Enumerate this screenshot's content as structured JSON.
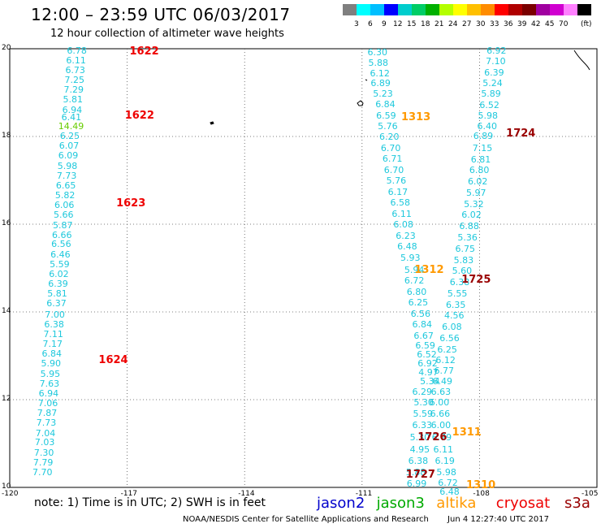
{
  "header": {
    "title": "12:00 – 23:59 UTC 06/03/2017",
    "subtitle": "12 hour collection of altimeter wave heights"
  },
  "colorbar": {
    "unit": "(ft)",
    "colors": [
      "#7f7f7f",
      "#00ffff",
      "#00bfff",
      "#0000ff",
      "#00cdcd",
      "#00cd66",
      "#00b000",
      "#b4ff00",
      "#ffff00",
      "#ffc000",
      "#ff8c00",
      "#ff0000",
      "#b00000",
      "#7a0000",
      "#a000a0",
      "#d000d0",
      "#ff80ff",
      "#000000"
    ],
    "labels": [
      "3",
      "6",
      "9",
      "12",
      "15",
      "18",
      "21",
      "24",
      "27",
      "30",
      "33",
      "36",
      "39",
      "42",
      "45",
      "70"
    ]
  },
  "axes": {
    "x_ticks": [
      "-120",
      "-117",
      "-114",
      "-111",
      "-108",
      "-105"
    ],
    "y_ticks": [
      "20",
      "18",
      "16",
      "14",
      "12",
      "10"
    ]
  },
  "tracks": {
    "colors": {
      "cyan": "#1ec8dc",
      "green": "#66cc00",
      "red": "#ee0000",
      "orange": "#ff9900",
      "maroon": "#990000"
    },
    "wave_labels": [
      {
        "t": "6.78",
        "c": "cyan",
        "lon": -118.54,
        "lat": 19.95
      },
      {
        "t": "6.11",
        "c": "cyan",
        "lon": -118.56,
        "lat": 19.72
      },
      {
        "t": "6.73",
        "c": "cyan",
        "lon": -118.58,
        "lat": 19.5
      },
      {
        "t": "7.25",
        "c": "cyan",
        "lon": -118.6,
        "lat": 19.27
      },
      {
        "t": "7.29",
        "c": "cyan",
        "lon": -118.62,
        "lat": 19.05
      },
      {
        "t": "5.81",
        "c": "cyan",
        "lon": -118.64,
        "lat": 18.83
      },
      {
        "t": "6.94",
        "c": "cyan",
        "lon": -118.66,
        "lat": 18.6
      },
      {
        "t": "6.41",
        "c": "cyan",
        "lon": -118.68,
        "lat": 18.43
      },
      {
        "t": "14.49",
        "c": "green",
        "lon": -118.76,
        "lat": 18.22
      },
      {
        "t": "6.25",
        "c": "cyan",
        "lon": -118.72,
        "lat": 18.0
      },
      {
        "t": "6.07",
        "c": "cyan",
        "lon": -118.74,
        "lat": 17.77
      },
      {
        "t": "6.09",
        "c": "cyan",
        "lon": -118.76,
        "lat": 17.55
      },
      {
        "t": "5.98",
        "c": "cyan",
        "lon": -118.78,
        "lat": 17.32
      },
      {
        "t": "7.73",
        "c": "cyan",
        "lon": -118.8,
        "lat": 17.1
      },
      {
        "t": "6.65",
        "c": "cyan",
        "lon": -118.82,
        "lat": 16.87
      },
      {
        "t": "5.82",
        "c": "cyan",
        "lon": -118.84,
        "lat": 16.65
      },
      {
        "t": "6.06",
        "c": "cyan",
        "lon": -118.86,
        "lat": 16.42
      },
      {
        "t": "5.66",
        "c": "cyan",
        "lon": -118.88,
        "lat": 16.2
      },
      {
        "t": "5.87",
        "c": "cyan",
        "lon": -118.9,
        "lat": 15.97
      },
      {
        "t": "6.66",
        "c": "cyan",
        "lon": -118.92,
        "lat": 15.75
      },
      {
        "t": "6.56",
        "c": "cyan",
        "lon": -118.94,
        "lat": 15.53
      },
      {
        "t": "6.46",
        "c": "cyan",
        "lon": -118.96,
        "lat": 15.3
      },
      {
        "t": "5.59",
        "c": "cyan",
        "lon": -118.98,
        "lat": 15.08
      },
      {
        "t": "6.02",
        "c": "cyan",
        "lon": -119.0,
        "lat": 14.85
      },
      {
        "t": "6.39",
        "c": "cyan",
        "lon": -119.02,
        "lat": 14.63
      },
      {
        "t": "5.81",
        "c": "cyan",
        "lon": -119.04,
        "lat": 14.4
      },
      {
        "t": "6.37",
        "c": "cyan",
        "lon": -119.06,
        "lat": 14.18
      },
      {
        "t": "7.00",
        "c": "cyan",
        "lon": -119.1,
        "lat": 13.93
      },
      {
        "t": "6.38",
        "c": "cyan",
        "lon": -119.12,
        "lat": 13.71
      },
      {
        "t": "7.11",
        "c": "cyan",
        "lon": -119.14,
        "lat": 13.48
      },
      {
        "t": "7.17",
        "c": "cyan",
        "lon": -119.16,
        "lat": 13.26
      },
      {
        "t": "6.84",
        "c": "cyan",
        "lon": -119.18,
        "lat": 13.03
      },
      {
        "t": "5.90",
        "c": "cyan",
        "lon": -119.2,
        "lat": 12.81
      },
      {
        "t": "5.95",
        "c": "cyan",
        "lon": -119.22,
        "lat": 12.58
      },
      {
        "t": "7.63",
        "c": "cyan",
        "lon": -119.24,
        "lat": 12.36
      },
      {
        "t": "6.94",
        "c": "cyan",
        "lon": -119.26,
        "lat": 12.13
      },
      {
        "t": "7.06",
        "c": "cyan",
        "lon": -119.28,
        "lat": 11.91
      },
      {
        "t": "7.87",
        "c": "cyan",
        "lon": -119.3,
        "lat": 11.68
      },
      {
        "t": "7.73",
        "c": "cyan",
        "lon": -119.32,
        "lat": 11.46
      },
      {
        "t": "7.04",
        "c": "cyan",
        "lon": -119.34,
        "lat": 11.23
      },
      {
        "t": "7.03",
        "c": "cyan",
        "lon": -119.36,
        "lat": 11.01
      },
      {
        "t": "7.30",
        "c": "cyan",
        "lon": -119.38,
        "lat": 10.78
      },
      {
        "t": "7.79",
        "c": "cyan",
        "lon": -119.4,
        "lat": 10.56
      },
      {
        "t": "7.70",
        "c": "cyan",
        "lon": -119.42,
        "lat": 10.33
      },
      {
        "t": "6.30",
        "c": "cyan",
        "lon": -110.86,
        "lat": 19.9
      },
      {
        "t": "5.88",
        "c": "cyan",
        "lon": -110.84,
        "lat": 19.67
      },
      {
        "t": "6.12",
        "c": "cyan",
        "lon": -110.8,
        "lat": 19.43
      },
      {
        "t": "6.89",
        "c": "cyan",
        "lon": -110.78,
        "lat": 19.2
      },
      {
        "t": "5.23",
        "c": "cyan",
        "lon": -110.72,
        "lat": 18.96
      },
      {
        "t": "6.84",
        "c": "cyan",
        "lon": -110.66,
        "lat": 18.72
      },
      {
        "t": "6.59",
        "c": "cyan",
        "lon": -110.64,
        "lat": 18.46
      },
      {
        "t": "5.76",
        "c": "cyan",
        "lon": -110.6,
        "lat": 18.22
      },
      {
        "t": "6.20",
        "c": "cyan",
        "lon": -110.56,
        "lat": 17.98
      },
      {
        "t": "6.70",
        "c": "cyan",
        "lon": -110.52,
        "lat": 17.73
      },
      {
        "t": "6.71",
        "c": "cyan",
        "lon": -110.48,
        "lat": 17.48
      },
      {
        "t": "6.70",
        "c": "cyan",
        "lon": -110.44,
        "lat": 17.23
      },
      {
        "t": "5.76",
        "c": "cyan",
        "lon": -110.38,
        "lat": 16.98
      },
      {
        "t": "6.17",
        "c": "cyan",
        "lon": -110.34,
        "lat": 16.73
      },
      {
        "t": "6.58",
        "c": "cyan",
        "lon": -110.28,
        "lat": 16.48
      },
      {
        "t": "6.11",
        "c": "cyan",
        "lon": -110.24,
        "lat": 16.23
      },
      {
        "t": "6.08",
        "c": "cyan",
        "lon": -110.2,
        "lat": 15.98
      },
      {
        "t": "6.23",
        "c": "cyan",
        "lon": -110.14,
        "lat": 15.73
      },
      {
        "t": "6.48",
        "c": "cyan",
        "lon": -110.1,
        "lat": 15.48
      },
      {
        "t": "5.93",
        "c": "cyan",
        "lon": -110.02,
        "lat": 15.23
      },
      {
        "t": "5.94",
        "c": "cyan",
        "lon": -109.92,
        "lat": 14.95
      },
      {
        "t": "6.72",
        "c": "cyan",
        "lon": -109.92,
        "lat": 14.7
      },
      {
        "t": "6.80",
        "c": "cyan",
        "lon": -109.86,
        "lat": 14.45
      },
      {
        "t": "6.25",
        "c": "cyan",
        "lon": -109.82,
        "lat": 14.2
      },
      {
        "t": "6.56",
        "c": "cyan",
        "lon": -109.76,
        "lat": 13.95
      },
      {
        "t": "6.84",
        "c": "cyan",
        "lon": -109.72,
        "lat": 13.7
      },
      {
        "t": "6.67",
        "c": "cyan",
        "lon": -109.68,
        "lat": 13.45
      },
      {
        "t": "6.59",
        "c": "cyan",
        "lon": -109.64,
        "lat": 13.22
      },
      {
        "t": "6.52",
        "c": "cyan",
        "lon": -109.6,
        "lat": 13.02
      },
      {
        "t": "6.92",
        "c": "cyan",
        "lon": -109.58,
        "lat": 12.82
      },
      {
        "t": "4.97",
        "c": "cyan",
        "lon": -109.56,
        "lat": 12.62
      },
      {
        "t": "5.34",
        "c": "cyan",
        "lon": -109.52,
        "lat": 12.4
      },
      {
        "t": "6.29",
        "c": "cyan",
        "lon": -109.72,
        "lat": 12.16
      },
      {
        "t": "5.30",
        "c": "cyan",
        "lon": -109.68,
        "lat": 11.92
      },
      {
        "t": "5.59",
        "c": "cyan",
        "lon": -109.7,
        "lat": 11.66
      },
      {
        "t": "6.33",
        "c": "cyan",
        "lon": -109.72,
        "lat": 11.4
      },
      {
        "t": "5.30",
        "c": "cyan",
        "lon": -109.78,
        "lat": 11.13
      },
      {
        "t": "4.95",
        "c": "cyan",
        "lon": -109.78,
        "lat": 10.86
      },
      {
        "t": "6.38",
        "c": "cyan",
        "lon": -109.82,
        "lat": 10.6
      },
      {
        "t": "5.88",
        "c": "cyan",
        "lon": -109.88,
        "lat": 10.34
      },
      {
        "t": "6.99",
        "c": "cyan",
        "lon": -109.86,
        "lat": 10.08
      },
      {
        "t": "6.92",
        "c": "cyan",
        "lon": -107.82,
        "lat": 19.95
      },
      {
        "t": "7.10",
        "c": "cyan",
        "lon": -107.84,
        "lat": 19.7
      },
      {
        "t": "6.39",
        "c": "cyan",
        "lon": -107.88,
        "lat": 19.45
      },
      {
        "t": "5.24",
        "c": "cyan",
        "lon": -107.92,
        "lat": 19.2
      },
      {
        "t": "5.89",
        "c": "cyan",
        "lon": -107.96,
        "lat": 18.96
      },
      {
        "t": "6.52",
        "c": "cyan",
        "lon": -108.0,
        "lat": 18.71
      },
      {
        "t": "5.98",
        "c": "cyan",
        "lon": -108.04,
        "lat": 18.46
      },
      {
        "t": "6.40",
        "c": "cyan",
        "lon": -108.06,
        "lat": 18.22
      },
      {
        "t": "6.89",
        "c": "cyan",
        "lon": -108.16,
        "lat": 18.0
      },
      {
        "t": "7.15",
        "c": "cyan",
        "lon": -108.18,
        "lat": 17.73
      },
      {
        "t": "6.81",
        "c": "cyan",
        "lon": -108.22,
        "lat": 17.47
      },
      {
        "t": "6.80",
        "c": "cyan",
        "lon": -108.26,
        "lat": 17.22
      },
      {
        "t": "6.02",
        "c": "cyan",
        "lon": -108.3,
        "lat": 16.96
      },
      {
        "t": "5.97",
        "c": "cyan",
        "lon": -108.34,
        "lat": 16.71
      },
      {
        "t": "5.32",
        "c": "cyan",
        "lon": -108.4,
        "lat": 16.45
      },
      {
        "t": "6.02",
        "c": "cyan",
        "lon": -108.46,
        "lat": 16.2
      },
      {
        "t": "6.88",
        "c": "cyan",
        "lon": -108.52,
        "lat": 15.94
      },
      {
        "t": "5.36",
        "c": "cyan",
        "lon": -108.56,
        "lat": 15.68
      },
      {
        "t": "6.75",
        "c": "cyan",
        "lon": -108.62,
        "lat": 15.43
      },
      {
        "t": "5.83",
        "c": "cyan",
        "lon": -108.66,
        "lat": 15.17
      },
      {
        "t": "5.60",
        "c": "cyan",
        "lon": -108.7,
        "lat": 14.92
      },
      {
        "t": "6.38",
        "c": "cyan",
        "lon": -108.76,
        "lat": 14.66
      },
      {
        "t": "5.55",
        "c": "cyan",
        "lon": -108.82,
        "lat": 14.4
      },
      {
        "t": "6.35",
        "c": "cyan",
        "lon": -108.86,
        "lat": 14.15
      },
      {
        "t": "4.56",
        "c": "cyan",
        "lon": -108.9,
        "lat": 13.9
      },
      {
        "t": "6.08",
        "c": "cyan",
        "lon": -108.96,
        "lat": 13.64
      },
      {
        "t": "6.56",
        "c": "cyan",
        "lon": -109.02,
        "lat": 13.38
      },
      {
        "t": "6.25",
        "c": "cyan",
        "lon": -109.08,
        "lat": 13.13
      },
      {
        "t": "6.12",
        "c": "cyan",
        "lon": -109.12,
        "lat": 12.88
      },
      {
        "t": "6.77",
        "c": "cyan",
        "lon": -109.16,
        "lat": 12.64
      },
      {
        "t": "6.49",
        "c": "cyan",
        "lon": -109.2,
        "lat": 12.4
      },
      {
        "t": "6.63",
        "c": "cyan",
        "lon": -109.24,
        "lat": 12.16
      },
      {
        "t": "6.00",
        "c": "cyan",
        "lon": -109.28,
        "lat": 11.92
      },
      {
        "t": "6.66",
        "c": "cyan",
        "lon": -109.26,
        "lat": 11.66
      },
      {
        "t": "6.00",
        "c": "cyan",
        "lon": -109.24,
        "lat": 11.4
      },
      {
        "t": "6.79",
        "c": "cyan",
        "lon": -109.22,
        "lat": 11.13
      },
      {
        "t": "6.11",
        "c": "cyan",
        "lon": -109.18,
        "lat": 10.86
      },
      {
        "t": "6.19",
        "c": "cyan",
        "lon": -109.14,
        "lat": 10.6
      },
      {
        "t": "5.98",
        "c": "cyan",
        "lon": -109.1,
        "lat": 10.34
      },
      {
        "t": "6.72",
        "c": "cyan",
        "lon": -109.06,
        "lat": 10.1
      },
      {
        "t": "6.48",
        "c": "cyan",
        "lon": -109.02,
        "lat": 9.88
      }
    ],
    "pass_labels": [
      {
        "t": "1622",
        "c": "red",
        "lon": -116.94,
        "lat": 19.92
      },
      {
        "t": "1622",
        "c": "red",
        "lon": -117.06,
        "lat": 18.46
      },
      {
        "t": "1623",
        "c": "red",
        "lon": -117.28,
        "lat": 16.46
      },
      {
        "t": "1624",
        "c": "red",
        "lon": -117.73,
        "lat": 12.88
      },
      {
        "t": "1313",
        "c": "orange",
        "lon": -110.0,
        "lat": 18.42
      },
      {
        "t": "1724",
        "c": "maroon",
        "lon": -107.32,
        "lat": 18.06
      },
      {
        "t": "1312",
        "c": "orange",
        "lon": -109.66,
        "lat": 14.95
      },
      {
        "t": "1725",
        "c": "maroon",
        "lon": -108.46,
        "lat": 14.73
      },
      {
        "t": "1311",
        "c": "orange",
        "lon": -108.7,
        "lat": 11.24
      },
      {
        "t": "1726",
        "c": "maroon",
        "lon": -109.58,
        "lat": 11.13
      },
      {
        "t": "1727",
        "c": "maroon",
        "lon": -109.88,
        "lat": 10.28
      },
      {
        "t": "1310",
        "c": "orange",
        "lon": -108.34,
        "lat": 10.04
      }
    ]
  },
  "notes": {
    "text": "note:  1) Time is in UTC; 2) SWH is in feet",
    "legend": [
      {
        "name": "jason2",
        "color": "#0000cc"
      },
      {
        "name": "jason3",
        "color": "#00aa00"
      },
      {
        "name": "altika",
        "color": "#ff9900"
      },
      {
        "name": "cryosat",
        "color": "#ee0000"
      },
      {
        "name": "s3a",
        "color": "#990000"
      }
    ]
  },
  "footer": {
    "source": "NOAA/NESDIS Center for Satellite Applications and Research",
    "timestamp": "Jun  4 12:27:40 UTC 2017"
  }
}
